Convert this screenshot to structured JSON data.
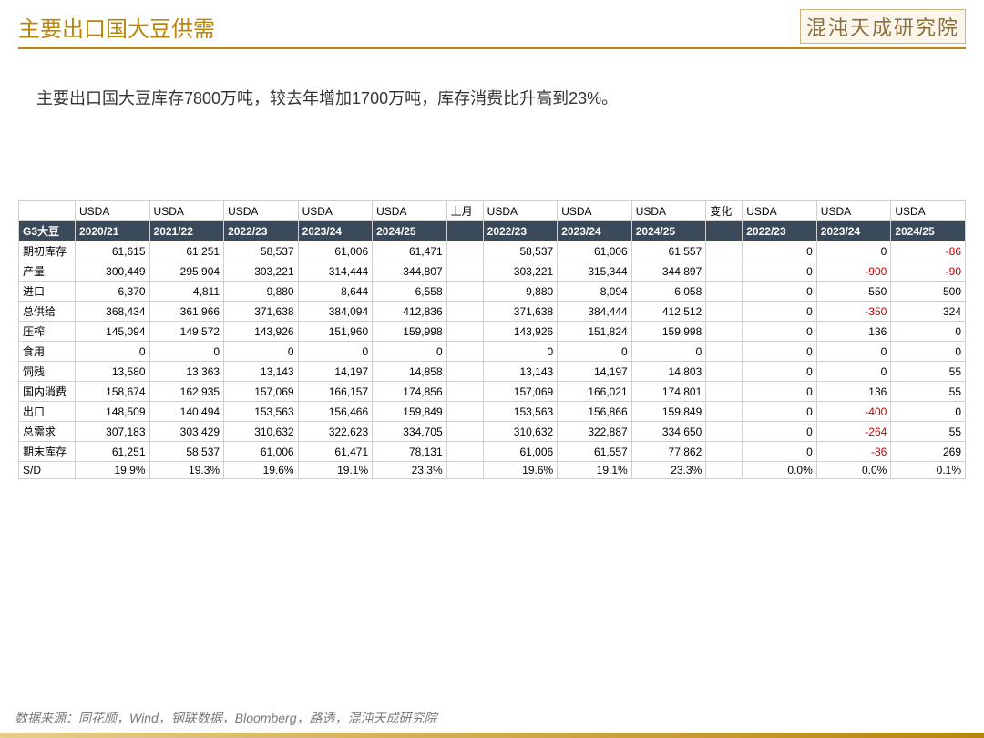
{
  "header": {
    "title": "主要出口国大豆供需",
    "logo": "混沌天成研究院"
  },
  "subtitle": "主要出口国大豆库存7800万吨，较去年增加1700万吨，库存消费比升高到23%。",
  "footer": "数据来源：同花顺，Wind，钢联数据，Bloomberg，路透，混沌天成研究院",
  "table": {
    "corner_top": "",
    "corner_label": "G3大豆",
    "top_headers": [
      "USDA",
      "USDA",
      "USDA",
      "USDA",
      "USDA",
      "上月",
      "USDA",
      "USDA",
      "USDA",
      "变化",
      "USDA",
      "USDA",
      "USDA"
    ],
    "sub_headers": [
      "2020/21",
      "2021/22",
      "2022/23",
      "2023/24",
      "2024/25",
      "",
      "2022/23",
      "2023/24",
      "2024/25",
      "",
      "2022/23",
      "2023/24",
      "2024/25"
    ],
    "row_labels": [
      "期初库存",
      "产量",
      "进口",
      "总供给",
      "压榨",
      "食用",
      "饲残",
      "国内消费",
      "出口",
      "总需求",
      "期末库存",
      "S/D"
    ],
    "rows": [
      [
        "61,615",
        "61,251",
        "58,537",
        "61,006",
        "61,471",
        "",
        "58,537",
        "61,006",
        "61,557",
        "",
        "0",
        "0",
        "-86"
      ],
      [
        "300,449",
        "295,904",
        "303,221",
        "314,444",
        "344,807",
        "",
        "303,221",
        "315,344",
        "344,897",
        "",
        "0",
        "-900",
        "-90"
      ],
      [
        "6,370",
        "4,811",
        "9,880",
        "8,644",
        "6,558",
        "",
        "9,880",
        "8,094",
        "6,058",
        "",
        "0",
        "550",
        "500"
      ],
      [
        "368,434",
        "361,966",
        "371,638",
        "384,094",
        "412,836",
        "",
        "371,638",
        "384,444",
        "412,512",
        "",
        "0",
        "-350",
        "324"
      ],
      [
        "145,094",
        "149,572",
        "143,926",
        "151,960",
        "159,998",
        "",
        "143,926",
        "151,824",
        "159,998",
        "",
        "0",
        "136",
        "0"
      ],
      [
        "0",
        "0",
        "0",
        "0",
        "0",
        "",
        "0",
        "0",
        "0",
        "",
        "0",
        "0",
        "0"
      ],
      [
        "13,580",
        "13,363",
        "13,143",
        "14,197",
        "14,858",
        "",
        "13,143",
        "14,197",
        "14,803",
        "",
        "0",
        "0",
        "55"
      ],
      [
        "158,674",
        "162,935",
        "157,069",
        "166,157",
        "174,856",
        "",
        "157,069",
        "166,021",
        "174,801",
        "",
        "0",
        "136",
        "55"
      ],
      [
        "148,509",
        "140,494",
        "153,563",
        "156,466",
        "159,849",
        "",
        "153,563",
        "156,866",
        "159,849",
        "",
        "0",
        "-400",
        "0"
      ],
      [
        "307,183",
        "303,429",
        "310,632",
        "322,623",
        "334,705",
        "",
        "310,632",
        "322,887",
        "334,650",
        "",
        "0",
        "-264",
        "55"
      ],
      [
        "61,251",
        "58,537",
        "61,006",
        "61,471",
        "78,131",
        "",
        "61,006",
        "61,557",
        "77,862",
        "",
        "0",
        "-86",
        "269"
      ],
      [
        "19.9%",
        "19.3%",
        "19.6%",
        "19.1%",
        "23.3%",
        "",
        "19.6%",
        "19.1%",
        "23.3%",
        "",
        "0.0%",
        "0.0%",
        "0.1%"
      ]
    ]
  },
  "style": {
    "accent_color": "#b8860b",
    "row_header_bg": "#3b4a5a",
    "row_header_fg": "#ffffff",
    "border_color": "#d0d0d0",
    "negative_color": "#c00000",
    "font_size_table": 12,
    "font_size_title": 24,
    "font_size_subtitle": 18
  }
}
